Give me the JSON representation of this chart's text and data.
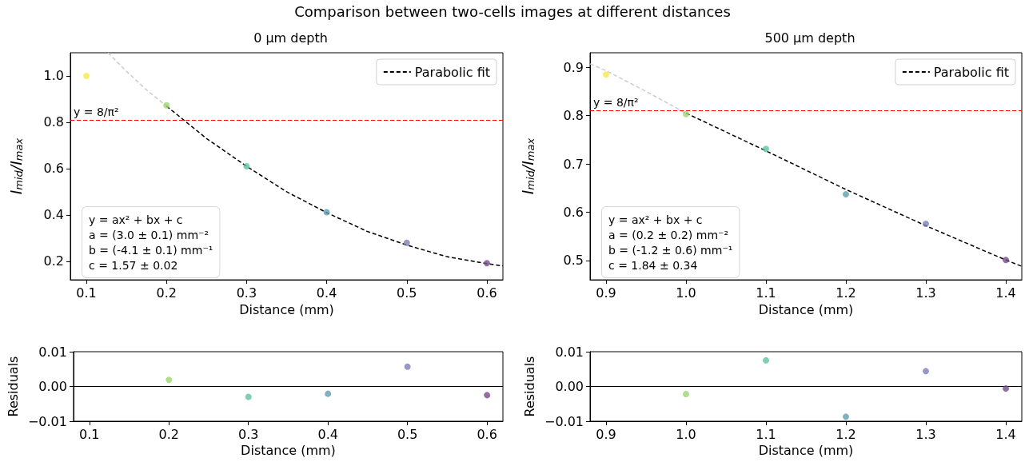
{
  "chart_data": [
    {
      "type": "scatter",
      "title": "Comparison between two-cells images at different distances",
      "subtitle": "0 μm depth",
      "xlabel": "Distance (mm)",
      "ylabel": "I$_{mid}$/I$_{max}$",
      "xlim": [
        0.08,
        0.62
      ],
      "xticks": [
        0.1,
        0.2,
        0.3,
        0.4,
        0.5,
        0.6
      ],
      "ylim": [
        0.12,
        1.1
      ],
      "yticks": [
        0.2,
        0.4,
        0.6,
        0.8,
        {
          "value": 1.0,
          "label": "1.0"
        }
      ],
      "grid": false,
      "legend": "top right",
      "series": [
        {
          "type": "scatter",
          "marker": "circle",
          "x": [
            0.1,
            0.2,
            0.3,
            0.4,
            0.5,
            0.6
          ],
          "values": [
            1.0,
            0.873,
            0.61,
            0.412,
            0.28,
            0.192
          ],
          "colors": [
            "#f9e84a",
            "#9bd66f",
            "#5cc59c",
            "#5d9fae",
            "#7a80b5",
            "#774b8b"
          ]
        },
        {
          "type": "line",
          "marker": "none",
          "name": "Parabolic fit",
          "color": "#000000",
          "line_style": "dashed",
          "x": [
            0.2,
            0.25,
            0.3,
            0.35,
            0.4,
            0.45,
            0.5,
            0.55,
            0.6,
            0.62
          ],
          "values": [
            0.87,
            0.73,
            0.61,
            0.5,
            0.41,
            0.33,
            0.27,
            0.22,
            0.19,
            0.18
          ]
        },
        {
          "type": "line",
          "marker": "none",
          "color": "#cccccc",
          "line_style": "dashed",
          "x": [
            0.127,
            0.15,
            0.175,
            0.2
          ],
          "values": [
            1.1,
            1.02,
            0.94,
            0.87
          ]
        }
      ],
      "ref_lines": [
        {
          "axis": "y",
          "value": 0.8106,
          "color": "#ff0000",
          "line_style": "dashed"
        }
      ],
      "annotations": [
        {
          "text": "y = 8/π²",
          "x": 0.08,
          "y": 0.8106
        },
        "y = ax² + bx + c",
        "a = (3.0 ± 0.1) mm⁻²",
        "b = (-4.1 ± 0.1) mm⁻¹",
        "c = 1.57 ± 0.02"
      ]
    },
    {
      "type": "scatter",
      "subtitle": "500 μm depth",
      "xlabel": "Distance (mm)",
      "ylabel": "I$_{mid}$/I$_{max}$",
      "xlim": [
        0.88,
        1.42
      ],
      "xticks": [
        0.9,
        {
          "value": 1.0,
          "label": "1.0"
        },
        1.1,
        1.2,
        1.3,
        1.4
      ],
      "ylim": [
        0.46,
        0.93
      ],
      "yticks": [
        0.5,
        0.6,
        0.7,
        0.8,
        0.9
      ],
      "grid": false,
      "legend": "top right",
      "series": [
        {
          "type": "scatter",
          "marker": "circle",
          "x": [
            0.9,
            1.0,
            1.1,
            1.2,
            1.3,
            1.4
          ],
          "values": [
            0.885,
            0.803,
            0.731,
            0.637,
            0.576,
            0.501
          ],
          "colors": [
            "#f9e84a",
            "#9bd66f",
            "#5cc59c",
            "#5d9fae",
            "#7a80b5",
            "#774b8b"
          ]
        },
        {
          "type": "line",
          "marker": "none",
          "name": "Parabolic fit",
          "color": "#000000",
          "line_style": "dashed",
          "x": [
            1.0,
            1.1,
            1.2,
            1.3,
            1.4,
            1.42
          ],
          "values": [
            0.805,
            0.727,
            0.647,
            0.572,
            0.501,
            0.488
          ]
        },
        {
          "type": "line",
          "marker": "none",
          "color": "#cccccc",
          "line_style": "dashed",
          "x": [
            0.88,
            0.9,
            0.95,
            1.0
          ],
          "values": [
            0.907,
            0.893,
            0.85,
            0.805
          ]
        }
      ],
      "ref_lines": [
        {
          "axis": "y",
          "value": 0.8106,
          "color": "#ff0000",
          "line_style": "dashed"
        }
      ],
      "annotations": [
        {
          "text": "y = 8/π²",
          "x": 0.88,
          "y": 0.8106
        },
        "y = ax² + bx + c",
        "a = (0.2 ± 0.2) mm⁻²",
        "b = (-1.2 ± 0.6) mm⁻¹",
        "c = 1.84 ± 0.34"
      ]
    },
    {
      "type": "scatter",
      "xlabel": "Distance (mm)",
      "ylabel": "Residuals",
      "xlim": [
        0.08,
        0.62
      ],
      "xticks": [
        0.1,
        0.2,
        0.3,
        0.4,
        0.5,
        0.6
      ],
      "ylim": [
        -0.01,
        0.01
      ],
      "yticks": [
        {
          "value": -0.01,
          "label": "−0.01"
        },
        {
          "value": 0,
          "label": "0.00"
        },
        0.01
      ],
      "grid": false,
      "marker": "circle",
      "series": [
        {
          "type": "scatter",
          "x": [
            0.2,
            0.3,
            0.4,
            0.5,
            0.6
          ],
          "values": [
            0.0019,
            -0.003,
            -0.0021,
            0.0057,
            -0.0025
          ],
          "colors": [
            "#9bd66f",
            "#5cc59c",
            "#5d9fae",
            "#7a80b5",
            "#774b8b"
          ]
        }
      ],
      "ref_lines": [
        {
          "axis": "y",
          "value": 0,
          "color": "#000000",
          "line_style": "solid"
        }
      ]
    },
    {
      "type": "scatter",
      "xlabel": "Distance (mm)",
      "ylabel": "Residuals",
      "xlim": [
        0.88,
        1.42
      ],
      "xticks": [
        0.9,
        {
          "value": 1.0,
          "label": "1.0"
        },
        1.1,
        1.2,
        1.3,
        1.4
      ],
      "ylim": [
        -0.01,
        0.01
      ],
      "yticks": [
        {
          "value": -0.01,
          "label": "−0.01"
        },
        {
          "value": 0,
          "label": "0.00"
        },
        0.01
      ],
      "grid": false,
      "marker": "circle",
      "series": [
        {
          "type": "scatter",
          "x": [
            1.0,
            1.1,
            1.2,
            1.3,
            1.4
          ],
          "values": [
            -0.0022,
            0.0075,
            -0.0087,
            0.0044,
            -0.0006
          ],
          "colors": [
            "#9bd66f",
            "#5cc59c",
            "#5d9fae",
            "#7a80b5",
            "#774b8b"
          ]
        }
      ],
      "ref_lines": [
        {
          "axis": "y",
          "value": 0,
          "color": "#000000",
          "line_style": "solid"
        }
      ]
    }
  ]
}
